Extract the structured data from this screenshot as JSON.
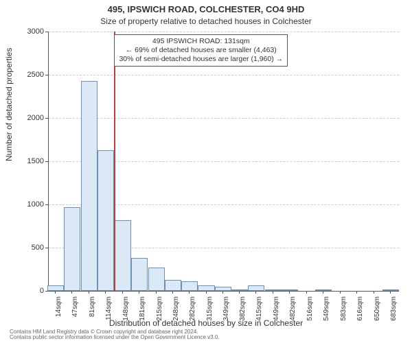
{
  "title": "495, IPSWICH ROAD, COLCHESTER, CO4 9HD",
  "subtitle": "Size of property relative to detached houses in Colchester",
  "ylabel": "Number of detached properties",
  "xlabel": "Distribution of detached houses by size in Colchester",
  "footer_line1": "Contains HM Land Registry data © Crown copyright and database right 2024.",
  "footer_line2": "Contains public sector information licensed under the Open Government Licence v3.0.",
  "chart": {
    "type": "histogram",
    "background_color": "#ffffff",
    "bar_fill": "#dbe9f6",
    "bar_border": "#6b90b6",
    "grid_color": "#cccccc",
    "axis_color": "#555555",
    "ref_line_color": "#c23b3b",
    "label_fontsize": 12,
    "tick_fontsize": 11,
    "xtick_fontsize": 10,
    "title_fontsize": 13,
    "xlim": [
      0,
      700
    ],
    "ylim": [
      0,
      3000
    ],
    "yticks": [
      0,
      500,
      1000,
      1500,
      2000,
      2500,
      3000
    ],
    "xticks": [
      14,
      47,
      81,
      114,
      148,
      181,
      215,
      248,
      282,
      315,
      349,
      382,
      415,
      449,
      482,
      516,
      549,
      583,
      616,
      650,
      683
    ],
    "xtick_labels": [
      "14sqm",
      "47sqm",
      "81sqm",
      "114sqm",
      "148sqm",
      "181sqm",
      "215sqm",
      "248sqm",
      "282sqm",
      "315sqm",
      "349sqm",
      "382sqm",
      "415sqm",
      "449sqm",
      "482sqm",
      "516sqm",
      "549sqm",
      "583sqm",
      "616sqm",
      "650sqm",
      "683sqm"
    ],
    "bin_width": 33,
    "bars": [
      {
        "x": 14,
        "count": 65
      },
      {
        "x": 47,
        "count": 970
      },
      {
        "x": 81,
        "count": 2430
      },
      {
        "x": 114,
        "count": 1630
      },
      {
        "x": 148,
        "count": 820
      },
      {
        "x": 181,
        "count": 380
      },
      {
        "x": 215,
        "count": 270
      },
      {
        "x": 248,
        "count": 130
      },
      {
        "x": 282,
        "count": 110
      },
      {
        "x": 315,
        "count": 60
      },
      {
        "x": 349,
        "count": 50
      },
      {
        "x": 382,
        "count": 18
      },
      {
        "x": 415,
        "count": 65
      },
      {
        "x": 449,
        "count": 10
      },
      {
        "x": 482,
        "count": 10
      },
      {
        "x": 516,
        "count": 0
      },
      {
        "x": 549,
        "count": 10
      },
      {
        "x": 583,
        "count": 0
      },
      {
        "x": 616,
        "count": 0
      },
      {
        "x": 650,
        "count": 0
      },
      {
        "x": 683,
        "count": 10
      }
    ],
    "reference_x": 131,
    "annotation": {
      "line1": "495 IPSWICH ROAD: 131sqm",
      "line2": "← 69% of detached houses are smaller (4,463)",
      "line3": "30% of semi-detached houses are larger (1,960) →"
    }
  }
}
